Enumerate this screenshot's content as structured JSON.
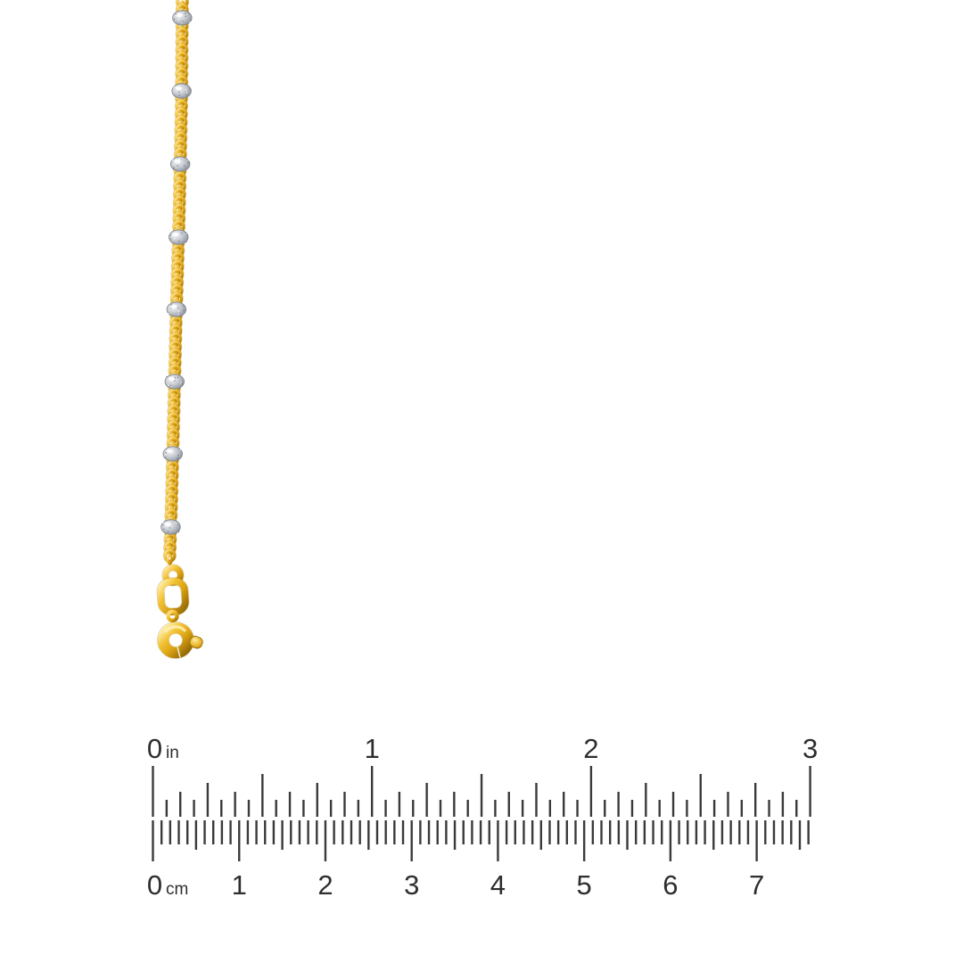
{
  "image": {
    "background": "#ffffff",
    "description": "gold bead-station chain necklace with spring ring clasp, photographed vertically above a printed inch and centimeter scale"
  },
  "product": {
    "kind": "two-tone station chain necklace",
    "chain_style": "cable chain",
    "clasp_style": "spring ring",
    "bead_count": 8,
    "colors": {
      "gold_highlight": "#fff0b0",
      "gold": "#f0c132",
      "gold_mid": "#d89e12",
      "gold_shadow": "#a07205",
      "silver_highlight": "#f4f5f7",
      "silver": "#bfc3c9",
      "silver_shadow": "#7d828a"
    }
  },
  "ruler": {
    "ink_color": "#3a3a3a",
    "label_color": "#2e2e2e",
    "top_scale": {
      "unit": "in",
      "zero_label": "0",
      "unit_label": "in",
      "number_labels": [
        "1",
        "2",
        "3"
      ],
      "divisions_per_unit": 16,
      "units_shown": 3
    },
    "bottom_scale": {
      "unit": "cm",
      "zero_label": "0",
      "unit_label": "cm",
      "number_labels": [
        "1",
        "2",
        "3",
        "4",
        "5",
        "6",
        "7"
      ],
      "divisions_per_unit": 10,
      "units_shown": 7.6
    }
  }
}
